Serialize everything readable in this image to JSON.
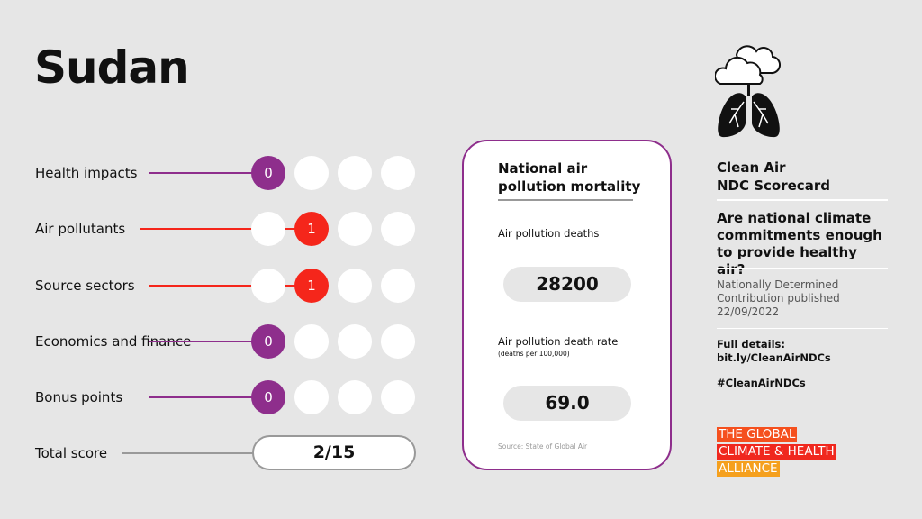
{
  "country": "Sudan",
  "colors": {
    "purple": "#8e2e8c",
    "red": "#f5261b",
    "background": "#e6e6e6"
  },
  "rows": [
    {
      "label": "Health impacts",
      "score": "0",
      "color": "#8e2e8c"
    },
    {
      "label": "Air pollutants",
      "score": "1",
      "color": "#f5261b"
    },
    {
      "label": "Source sectors",
      "score": "1",
      "color": "#f5261b"
    },
    {
      "label": "Economics and finance",
      "score": "0",
      "color": "#8e2e8c"
    },
    {
      "label": "Bonus points",
      "score": "0",
      "color": "#8e2e8c"
    }
  ],
  "total": {
    "label": "Total score",
    "value": "2/15"
  },
  "card": {
    "title_line1": "National air",
    "title_line2": "pollution mortality",
    "deaths_label": "Air pollution deaths",
    "deaths_value": "28200",
    "rate_label": "Air pollution death rate",
    "rate_unit": "(deaths per 100,000)",
    "rate_value": "69.0",
    "source": "Source: State of Global Air"
  },
  "side": {
    "icon": "cloud-lungs-icon",
    "heading_line1": "Clean Air",
    "heading_line2": "NDC Scorecard",
    "question": "Are national climate commitments enough to provide healthy air?",
    "ndc_line1": "Nationally Determined",
    "ndc_line2": "Contribution published",
    "ndc_date": "22/09/2022",
    "details_label": "Full details:",
    "details_link": "bit.ly/CleanAirNDCs",
    "hashtag": "#CleanAirNDCs"
  },
  "logo": {
    "line1": "THE GLOBAL",
    "line2": "CLIMATE & HEALTH",
    "line3": "ALLIANCE",
    "colors": [
      "#f5501e",
      "#f0281e",
      "#f5a01e"
    ]
  }
}
